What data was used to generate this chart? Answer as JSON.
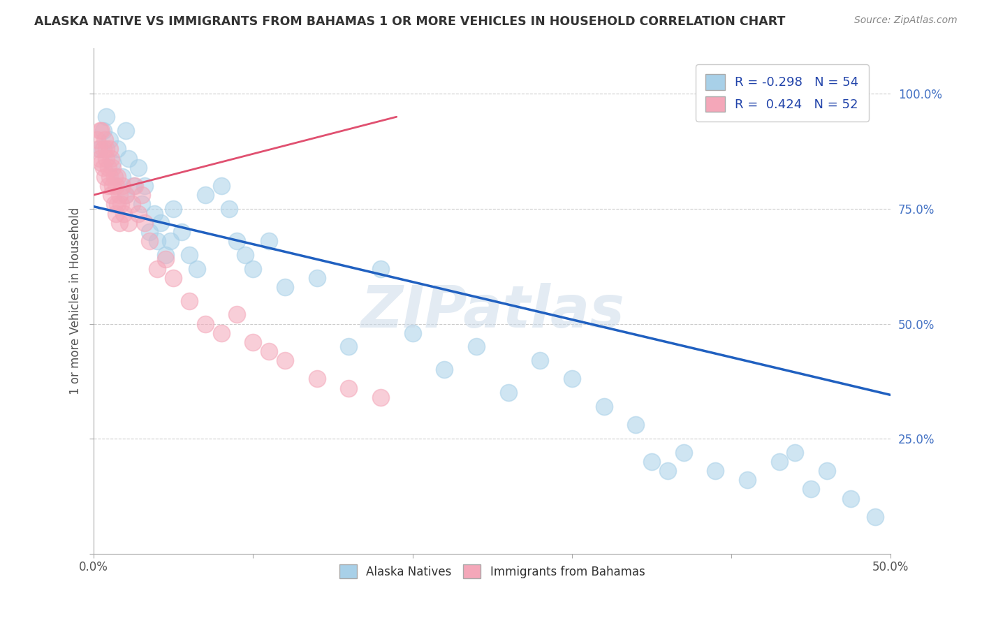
{
  "title": "ALASKA NATIVE VS IMMIGRANTS FROM BAHAMAS 1 OR MORE VEHICLES IN HOUSEHOLD CORRELATION CHART",
  "source": "Source: ZipAtlas.com",
  "ylabel": "1 or more Vehicles in Household",
  "xlim": [
    0.0,
    0.5
  ],
  "ylim": [
    0.0,
    1.1
  ],
  "xtick_positions": [
    0.0,
    0.1,
    0.2,
    0.3,
    0.4,
    0.5
  ],
  "xtick_labels": [
    "0.0%",
    "",
    "",
    "",
    "",
    "50.0%"
  ],
  "ytick_positions": [
    0.0,
    0.25,
    0.5,
    0.75,
    1.0
  ],
  "ytick_labels": [
    "",
    "25.0%",
    "50.0%",
    "75.0%",
    "100.0%"
  ],
  "r_blue": -0.298,
  "n_blue": 54,
  "r_pink": 0.424,
  "n_pink": 52,
  "legend_labels": [
    "Alaska Natives",
    "Immigrants from Bahamas"
  ],
  "blue_color": "#a8d0e8",
  "pink_color": "#f4a7b9",
  "blue_line_color": "#2060c0",
  "pink_line_color": "#e05070",
  "watermark": "ZIPatlas",
  "blue_scatter_x": [
    0.004,
    0.006,
    0.008,
    0.01,
    0.012,
    0.015,
    0.018,
    0.02,
    0.02,
    0.022,
    0.025,
    0.028,
    0.03,
    0.032,
    0.035,
    0.038,
    0.04,
    0.042,
    0.045,
    0.048,
    0.05,
    0.055,
    0.06,
    0.065,
    0.07,
    0.08,
    0.085,
    0.09,
    0.095,
    0.1,
    0.11,
    0.12,
    0.14,
    0.16,
    0.18,
    0.2,
    0.22,
    0.24,
    0.26,
    0.28,
    0.3,
    0.32,
    0.34,
    0.35,
    0.36,
    0.37,
    0.39,
    0.41,
    0.43,
    0.44,
    0.45,
    0.46,
    0.475,
    0.49
  ],
  "blue_scatter_y": [
    0.88,
    0.92,
    0.95,
    0.9,
    0.85,
    0.88,
    0.82,
    0.78,
    0.92,
    0.86,
    0.8,
    0.84,
    0.76,
    0.8,
    0.7,
    0.74,
    0.68,
    0.72,
    0.65,
    0.68,
    0.75,
    0.7,
    0.65,
    0.62,
    0.78,
    0.8,
    0.75,
    0.68,
    0.65,
    0.62,
    0.68,
    0.58,
    0.6,
    0.45,
    0.62,
    0.48,
    0.4,
    0.45,
    0.35,
    0.42,
    0.38,
    0.32,
    0.28,
    0.2,
    0.18,
    0.22,
    0.18,
    0.16,
    0.2,
    0.22,
    0.14,
    0.18,
    0.12,
    0.08
  ],
  "pink_scatter_x": [
    0.002,
    0.003,
    0.004,
    0.004,
    0.005,
    0.005,
    0.006,
    0.006,
    0.007,
    0.007,
    0.008,
    0.008,
    0.009,
    0.009,
    0.01,
    0.01,
    0.011,
    0.011,
    0.012,
    0.012,
    0.013,
    0.013,
    0.014,
    0.014,
    0.015,
    0.015,
    0.016,
    0.016,
    0.017,
    0.018,
    0.019,
    0.02,
    0.022,
    0.024,
    0.026,
    0.028,
    0.03,
    0.032,
    0.035,
    0.04,
    0.045,
    0.05,
    0.06,
    0.07,
    0.08,
    0.09,
    0.1,
    0.11,
    0.12,
    0.14,
    0.16,
    0.18
  ],
  "pink_scatter_y": [
    0.9,
    0.88,
    0.92,
    0.86,
    0.85,
    0.92,
    0.88,
    0.84,
    0.9,
    0.82,
    0.88,
    0.86,
    0.84,
    0.8,
    0.88,
    0.82,
    0.86,
    0.78,
    0.84,
    0.8,
    0.82,
    0.76,
    0.8,
    0.74,
    0.82,
    0.76,
    0.78,
    0.72,
    0.76,
    0.8,
    0.74,
    0.78,
    0.72,
    0.76,
    0.8,
    0.74,
    0.78,
    0.72,
    0.68,
    0.62,
    0.64,
    0.6,
    0.55,
    0.5,
    0.48,
    0.52,
    0.46,
    0.44,
    0.42,
    0.38,
    0.36,
    0.34
  ],
  "blue_trend_x": [
    0.0,
    0.5
  ],
  "blue_trend_y": [
    0.755,
    0.345
  ],
  "pink_trend_x": [
    0.0,
    0.19
  ],
  "pink_trend_y": [
    0.78,
    0.95
  ]
}
